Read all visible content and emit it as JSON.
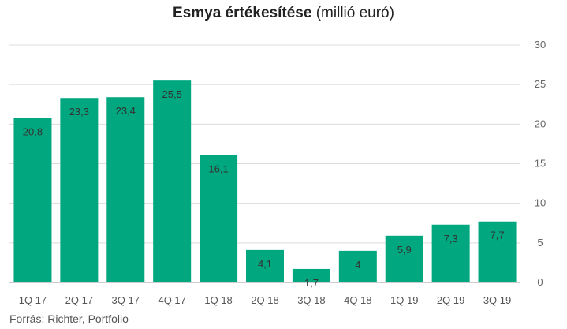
{
  "title_bold": "Esmya értékesítése",
  "title_rest": " (millió euró)",
  "source": "Forrás: Richter, Portfolio",
  "colors": {
    "bar": "#00a77f",
    "grid": "#dcdcdc",
    "axis": "#999999"
  },
  "chart_data": {
    "type": "bar",
    "title": "Esmya értékesítése (millió euró)",
    "xlabel": "",
    "ylabel": "",
    "categories": [
      "1Q 17",
      "2Q 17",
      "3Q 17",
      "4Q 17",
      "1Q 18",
      "2Q 18",
      "3Q 18",
      "4Q 18",
      "1Q 19",
      "2Q 19",
      "3Q 19"
    ],
    "values": [
      20.8,
      23.3,
      23.4,
      25.5,
      16.1,
      4.1,
      1.7,
      4,
      5.9,
      7.3,
      7.7
    ],
    "data_labels": [
      "20,8",
      "23,3",
      "23,4",
      "25,5",
      "16,1",
      "4,1",
      "1,7",
      "4",
      "5,9",
      "7,3",
      "7,7"
    ],
    "ylim": [
      0,
      30
    ],
    "yticks": [
      0,
      5,
      10,
      15,
      20,
      25,
      30
    ],
    "yaxis_position": "right",
    "grid": true,
    "legend": "none"
  }
}
